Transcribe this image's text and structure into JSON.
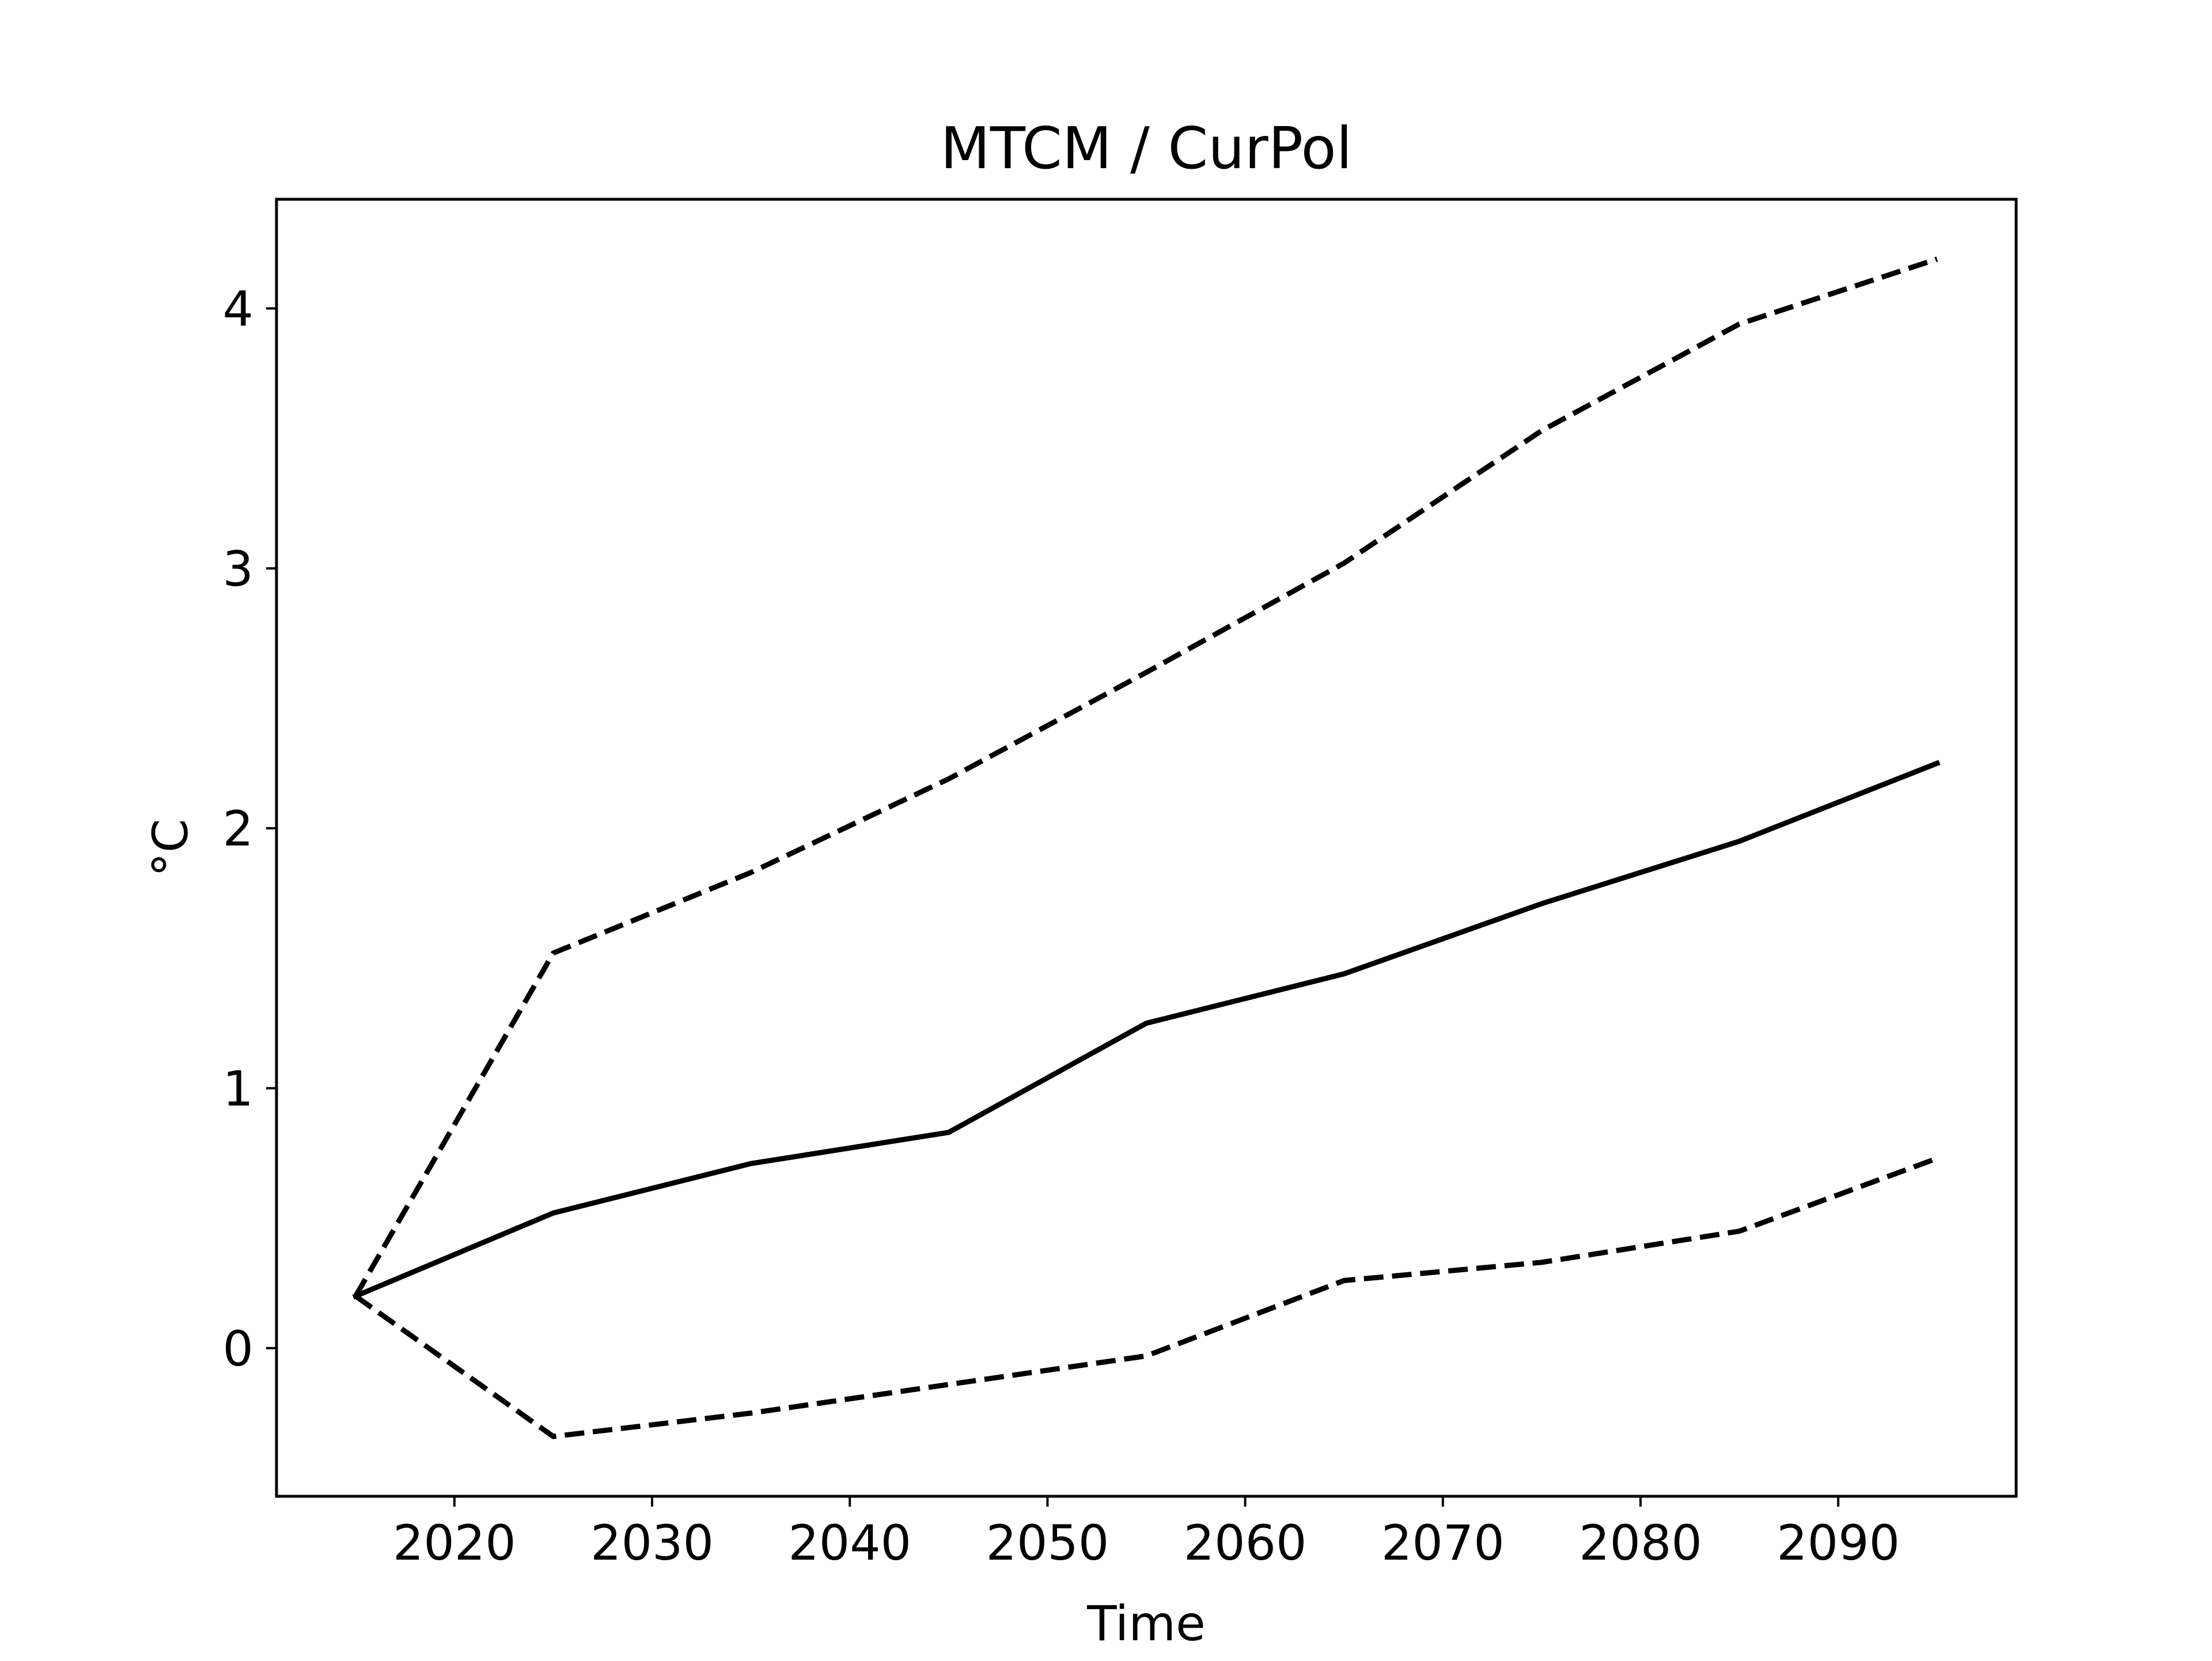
{
  "chart_data": {
    "type": "line",
    "title": "MTCM / CurPol",
    "xlabel": "Time",
    "ylabel": "°C",
    "xlim": [
      2011,
      2099
    ],
    "ylim": [
      -0.57,
      4.42
    ],
    "x_ticks": [
      2020,
      2030,
      2040,
      2050,
      2060,
      2070,
      2080,
      2090
    ],
    "y_ticks": [
      0,
      1,
      2,
      3,
      4
    ],
    "grid": false,
    "legend": "none",
    "colors": {
      "line": "#000000",
      "background": "#ffffff",
      "axes": "#000000"
    },
    "x": [
      2015,
      2025,
      2035,
      2045,
      2055,
      2065,
      2075,
      2085,
      2095
    ],
    "series": [
      {
        "style": "solid",
        "values": [
          0.2,
          0.52,
          0.71,
          0.83,
          1.25,
          1.44,
          1.71,
          1.95,
          2.25
        ]
      },
      {
        "style": "dashed",
        "values": [
          0.2,
          1.52,
          1.83,
          2.19,
          2.6,
          3.02,
          3.53,
          3.94,
          4.19
        ]
      },
      {
        "style": "dashed",
        "values": [
          0.2,
          -0.34,
          -0.25,
          -0.14,
          -0.03,
          0.26,
          0.33,
          0.45,
          0.73
        ]
      }
    ]
  }
}
